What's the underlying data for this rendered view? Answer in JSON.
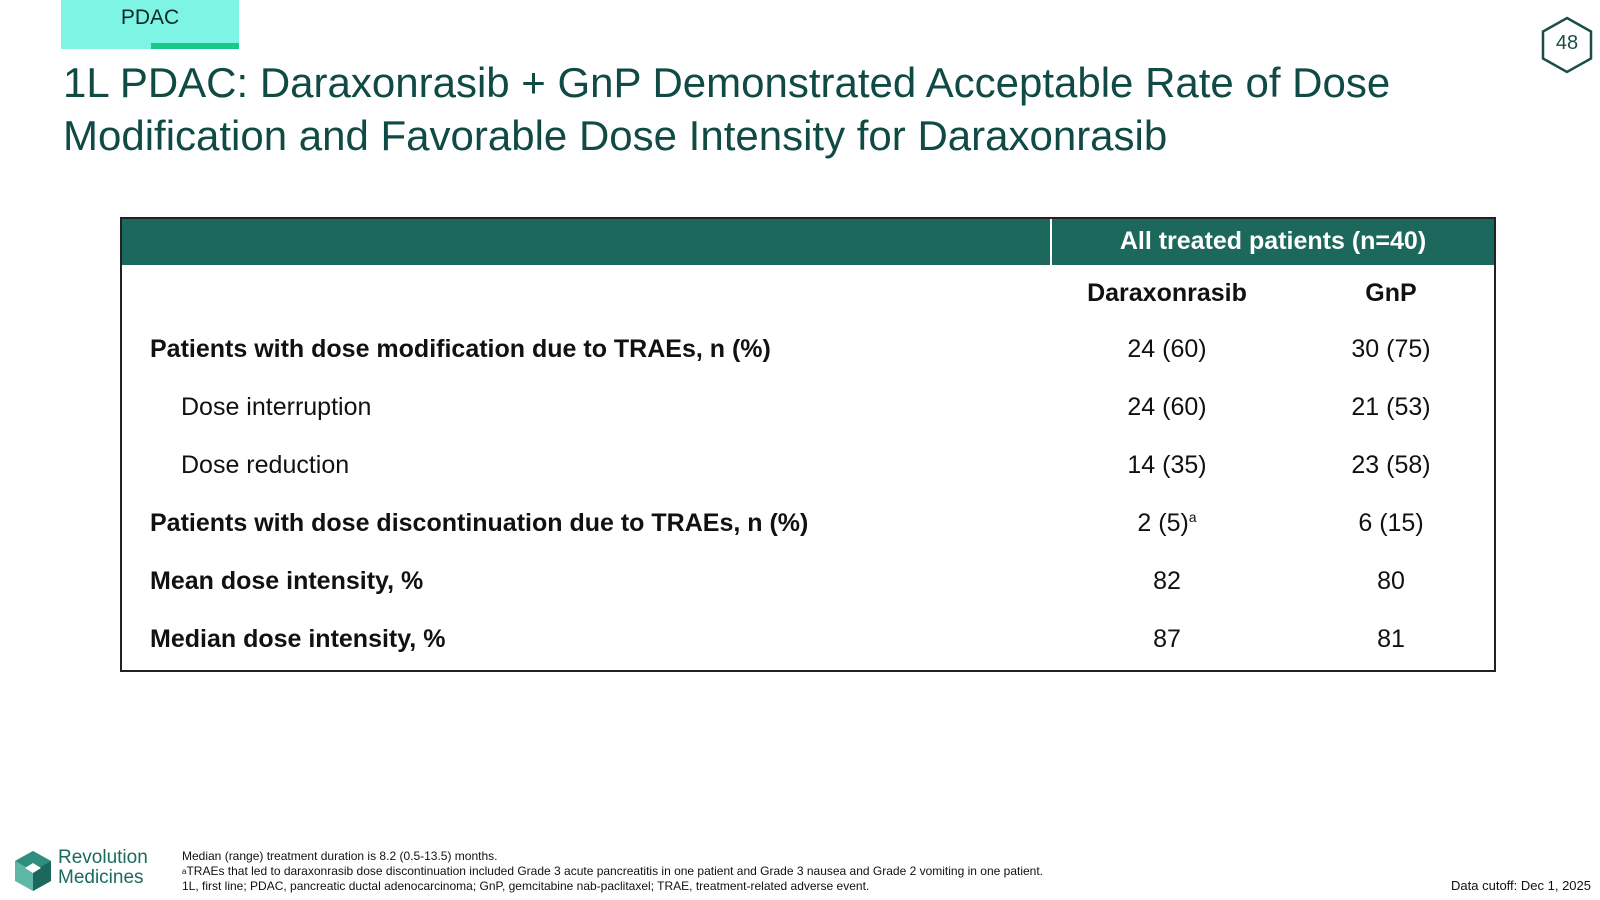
{
  "tag": {
    "label": "PDAC"
  },
  "page_number": "48",
  "title": "1L PDAC: Daraxonrasib + GnP Demonstrated Acceptable Rate of Dose Modification and Favorable Dose Intensity for Daraxonrasib",
  "table": {
    "group_header": "All treated patients (n=40)",
    "columns": [
      "Daraxonrasib",
      "GnP"
    ],
    "rows": [
      {
        "label": "Patients with dose modification due to TRAEs, n (%)",
        "values": [
          "24 (60)",
          "30 (75)"
        ]
      },
      {
        "label": "Dose interruption",
        "values": [
          "24 (60)",
          "21 (53)"
        ]
      },
      {
        "label": "Dose reduction",
        "values": [
          "14 (35)",
          "23 (58)"
        ]
      },
      {
        "label": "Patients with dose discontinuation due to TRAEs, n (%)",
        "values": [
          "2 (5)",
          "6 (15)"
        ],
        "value_superscript": "a"
      },
      {
        "label": "Mean dose intensity, %",
        "values": [
          "82",
          "80"
        ]
      },
      {
        "label": "Median dose intensity, %",
        "values": [
          "87",
          "81"
        ]
      }
    ]
  },
  "footnotes": {
    "line1": "Median (range) treatment duration is 8.2 (0.5-13.5) months.",
    "line2_marker": "a",
    "line2": "TRAEs that led to daraxonrasib dose discontinuation included Grade 3 acute pancreatitis in one patient and Grade 3 nausea and Grade 2 vomiting in one patient.",
    "line3": "1L, first line; PDAC, pancreatic ductal adenocarcinoma; GnP, gemcitabine nab-paclitaxel; TRAE, treatment-related adverse event."
  },
  "data_cutoff": "Data cutoff: Dec 1, 2025",
  "logo": {
    "line1": "Revolution",
    "line2": "Medicines"
  },
  "colors": {
    "header_fill": "#1c685c",
    "title_color": "#0f4a44",
    "tag_fill": "#7ef4e4",
    "tag_accent": "#19c98a"
  }
}
